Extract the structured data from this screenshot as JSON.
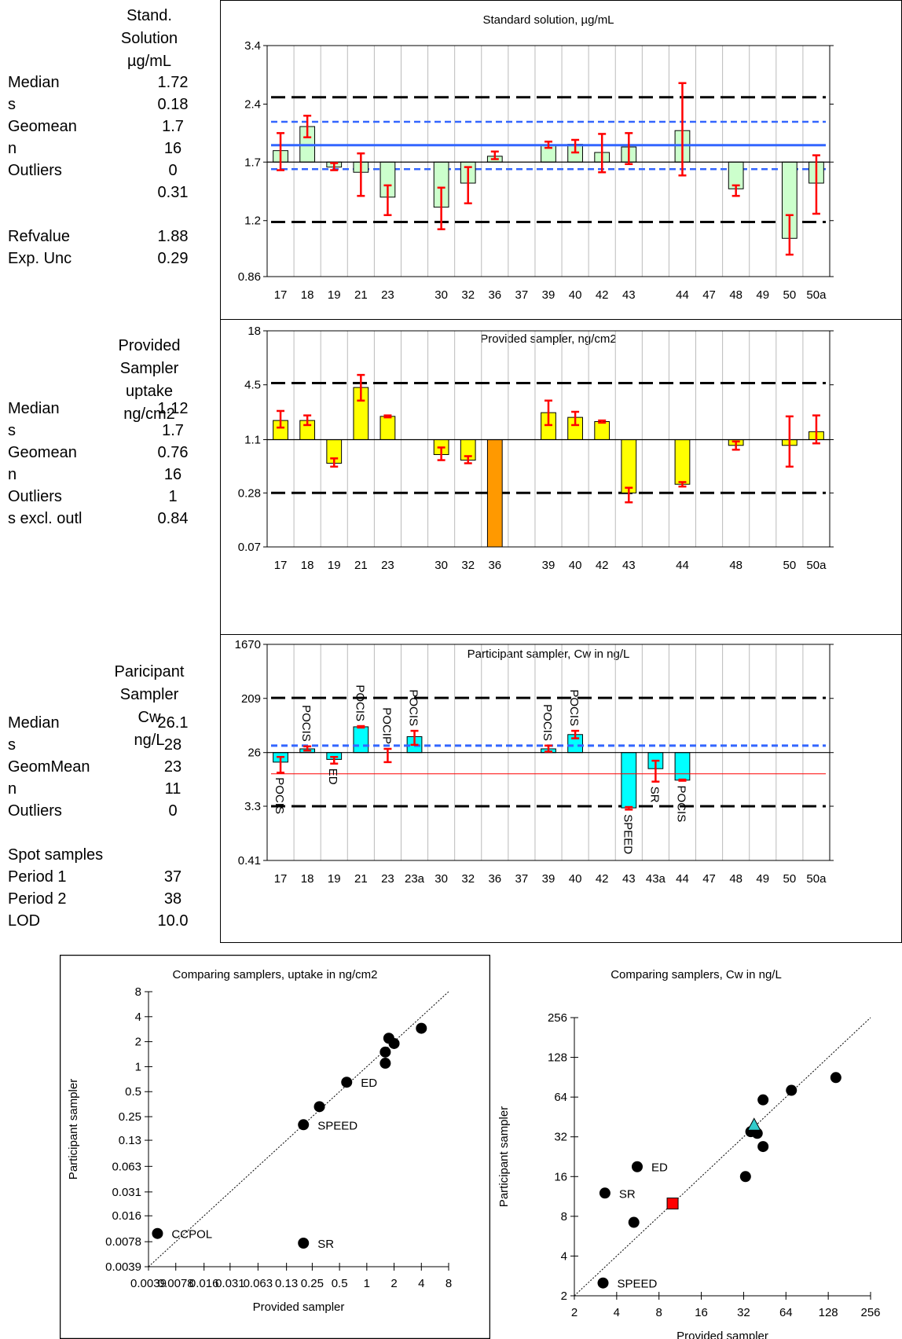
{
  "stats_panels": [
    {
      "header": [
        "Stand.",
        "Solution",
        "µg/mL"
      ],
      "rows": [
        {
          "label": "Median",
          "value": "1.72"
        },
        {
          "label": "s",
          "value": "0.18"
        },
        {
          "label": "Geomean",
          "value": "1.7"
        },
        {
          "label": "n",
          "value": "16"
        },
        {
          "label": "Outliers",
          "value": "0"
        },
        {
          "label": "",
          "value": "0.31"
        },
        {
          "label": "",
          "value": ""
        },
        {
          "label": "Refvalue",
          "value": "1.88"
        },
        {
          "label": "Exp. Unc",
          "value": "0.29"
        }
      ]
    },
    {
      "header": [
        "Provided",
        "Sampler",
        "uptake",
        "ng/cm2"
      ],
      "rows": [
        {
          "label": "Median",
          "value": "1.12"
        },
        {
          "label": "s",
          "value": "1.7"
        },
        {
          "label": "Geomean",
          "value": "0.76"
        },
        {
          "label": "n",
          "value": "16"
        },
        {
          "label": "Outliers",
          "value": "1"
        },
        {
          "label": "s excl. outl",
          "value": "0.84"
        }
      ]
    },
    {
      "header": [
        "Paricipant",
        "Sampler",
        "Cw",
        "ng/L"
      ],
      "rows": [
        {
          "label": "Median",
          "value": "26.1"
        },
        {
          "label": "s",
          "value": "28"
        },
        {
          "label": "GeomMean",
          "value": "23"
        },
        {
          "label": "n",
          "value": "11"
        },
        {
          "label": "Outliers",
          "value": "0"
        },
        {
          "label": "",
          "value": ""
        },
        {
          "label": "Spot samples",
          "value": ""
        },
        {
          "label": "Period 1",
          "value": "37"
        },
        {
          "label": "Period 2",
          "value": "38"
        },
        {
          "label": "LOD",
          "value": "10.0"
        }
      ]
    }
  ],
  "colors": {
    "standard_bar": "#ccffcc",
    "provided_bar": "#ffff00",
    "provided_outlier": "#ff9900",
    "participant_bar": "#00ffff",
    "error_bar": "#ff0000",
    "ref_line": "#3366ff",
    "limit_line": "#000000",
    "red_line": "#ff0000"
  },
  "chart_data": [
    {
      "type": "bar",
      "title": "Standard solution, µg/mL",
      "scale": "log",
      "baseline": 1.7,
      "ylim": [
        0.86,
        3.4
      ],
      "yticks": [
        "3.4",
        "2.4",
        "1.7",
        "1.2",
        "0.86"
      ],
      "categories": [
        "17",
        "18",
        "19",
        "21",
        "23",
        "",
        "30",
        "32",
        "36",
        "37",
        "39",
        "40",
        "42",
        "43",
        "",
        "44",
        "47",
        "48",
        "49",
        "50",
        "50a"
      ],
      "values": [
        1.82,
        2.1,
        1.65,
        1.6,
        1.38,
        null,
        1.3,
        1.5,
        1.76,
        null,
        1.88,
        1.89,
        1.8,
        1.86,
        null,
        2.05,
        null,
        1.45,
        null,
        1.08,
        1.5
      ],
      "err_low": [
        1.62,
        1.97,
        1.62,
        1.39,
        1.24,
        null,
        1.14,
        1.33,
        1.73,
        null,
        1.85,
        1.8,
        1.6,
        1.68,
        null,
        1.57,
        null,
        1.39,
        null,
        0.98,
        1.25
      ],
      "err_high": [
        2.02,
        2.24,
        1.69,
        1.79,
        1.48,
        null,
        1.46,
        1.65,
        1.81,
        null,
        1.92,
        1.94,
        2.01,
        2.02,
        null,
        2.72,
        null,
        1.48,
        null,
        1.24,
        1.77
      ],
      "ref_value": 1.88,
      "ref_band": [
        1.63,
        2.16
      ],
      "limits": [
        1.19,
        2.5
      ],
      "grid": true
    },
    {
      "type": "bar",
      "title": "Provided sampler, ng/cm2",
      "scale": "log",
      "baseline": 1.1,
      "ylim": [
        0.07,
        18
      ],
      "yticks": [
        "18",
        "4.5",
        "1.1",
        "0.28",
        "0.07"
      ],
      "categories": [
        "17",
        "18",
        "19",
        "21",
        "23",
        "",
        "30",
        "32",
        "36",
        "",
        "39",
        "40",
        "42",
        "43",
        "",
        "44",
        "",
        "48",
        "",
        "50",
        "50a"
      ],
      "values": [
        1.8,
        1.8,
        0.6,
        4.2,
        2.0,
        null,
        0.75,
        0.65,
        0.07,
        null,
        2.2,
        1.95,
        1.75,
        0.28,
        null,
        0.35,
        null,
        0.95,
        null,
        0.95,
        1.35
      ],
      "err_low": [
        1.5,
        1.6,
        0.55,
        3.0,
        1.95,
        null,
        0.65,
        0.6,
        null,
        null,
        1.6,
        1.6,
        1.7,
        0.22,
        null,
        0.33,
        null,
        0.85,
        null,
        0.55,
        1.0
      ],
      "err_high": [
        2.3,
        2.05,
        0.68,
        5.8,
        2.05,
        null,
        0.9,
        0.72,
        null,
        null,
        3.0,
        2.25,
        1.8,
        0.32,
        null,
        0.37,
        null,
        1.05,
        null,
        2.0,
        2.05
      ],
      "outlier_index": 8,
      "limits": [
        0.28,
        4.7
      ],
      "grid": true
    },
    {
      "type": "bar",
      "title": "Participant sampler, Cw in ng/L",
      "scale": "log",
      "baseline": 26,
      "ylim": [
        0.41,
        1670
      ],
      "yticks": [
        "1670",
        "209",
        "26",
        "3.3",
        "0.41"
      ],
      "categories": [
        "17",
        "18",
        "19",
        "21",
        "23",
        "23a",
        "30",
        "32",
        "36",
        "37",
        "39",
        "40",
        "42",
        "43",
        "43a",
        "44",
        "47",
        "48",
        "49",
        "50",
        "50a"
      ],
      "values": [
        18,
        30,
        20,
        70,
        null,
        48,
        null,
        null,
        null,
        null,
        30,
        52,
        null,
        3.1,
        14,
        9,
        null,
        null,
        null,
        null,
        null
      ],
      "err_low": [
        12,
        28,
        17,
        68,
        18,
        35,
        null,
        null,
        null,
        null,
        27,
        45,
        null,
        2.9,
        8.5,
        8.8,
        null,
        null,
        null,
        null,
        null
      ],
      "err_high": [
        22,
        33,
        22,
        72,
        30,
        60,
        null,
        null,
        null,
        null,
        34,
        60,
        null,
        3.2,
        19,
        9.2,
        null,
        null,
        null,
        null,
        null
      ],
      "bar_labels": [
        "POCIS",
        "POCIS",
        "ED",
        "POCIS",
        "POCIP",
        "POCIS",
        "",
        "",
        "",
        "",
        "POCIS",
        "POCIS",
        "",
        "SPEED",
        "SR",
        "POCIS",
        "",
        "",
        "",
        "",
        ""
      ],
      "ref_value": 34,
      "red_line": 11.5,
      "limits": [
        3.3,
        213
      ],
      "grid": true
    },
    {
      "type": "scatter",
      "title": "Comparing samplers, uptake in ng/cm2",
      "xlabel": "Provided sampler",
      "ylabel": "Participant sampler",
      "scale": "log2",
      "xlim": [
        0.0039,
        8
      ],
      "ylim": [
        0.0039,
        8
      ],
      "xticks": [
        "0.0039",
        "0.0078",
        "0.016",
        "0.031",
        "0.063",
        "0.13",
        "0.25",
        "0.5",
        "1",
        "2",
        "4",
        "8"
      ],
      "yticks": [
        "8",
        "4",
        "2",
        "1",
        "0.5",
        "0.25",
        "0.13",
        "0.063",
        "0.031",
        "0.016",
        "0.0078",
        "0.0039"
      ],
      "points": [
        {
          "x": 0.0049,
          "y": 0.0098,
          "label": "CCPOL"
        },
        {
          "x": 0.2,
          "y": 0.0075,
          "label": "SR"
        },
        {
          "x": 0.2,
          "y": 0.2,
          "label": "SPEED"
        },
        {
          "x": 0.6,
          "y": 0.65,
          "label": "ED"
        },
        {
          "x": 0.3,
          "y": 0.33,
          "label": ""
        },
        {
          "x": 1.6,
          "y": 1.1,
          "label": ""
        },
        {
          "x": 1.6,
          "y": 1.5,
          "label": ""
        },
        {
          "x": 1.75,
          "y": 2.2,
          "label": ""
        },
        {
          "x": 2.0,
          "y": 1.9,
          "label": ""
        },
        {
          "x": 4.0,
          "y": 2.9,
          "label": ""
        }
      ],
      "diagonal": true
    },
    {
      "type": "scatter",
      "title": "Comparing samplers, Cw in ng/L",
      "xlabel": "Provided sampler",
      "ylabel": "Participant sampler",
      "scale": "log2",
      "xlim": [
        2,
        256
      ],
      "ylim": [
        2,
        256
      ],
      "xticks": [
        "2",
        "4",
        "8",
        "16",
        "32",
        "64",
        "128",
        "256"
      ],
      "yticks": [
        "256",
        "128",
        "64",
        "32",
        "16",
        "8",
        "4",
        "2"
      ],
      "points": [
        {
          "x": 3.3,
          "y": 12,
          "label": "SR"
        },
        {
          "x": 3.2,
          "y": 2.5,
          "label": "SPEED"
        },
        {
          "x": 5.6,
          "y": 19,
          "label": "ED"
        },
        {
          "x": 5.3,
          "y": 7.2,
          "label": ""
        },
        {
          "x": 33,
          "y": 16,
          "label": ""
        },
        {
          "x": 36,
          "y": 35,
          "label": ""
        },
        {
          "x": 40,
          "y": 34,
          "label": ""
        },
        {
          "x": 44,
          "y": 27,
          "label": ""
        },
        {
          "x": 44,
          "y": 61,
          "label": ""
        },
        {
          "x": 70,
          "y": 72,
          "label": ""
        },
        {
          "x": 145,
          "y": 90,
          "label": ""
        }
      ],
      "special_points": [
        {
          "x": 10,
          "y": 10,
          "shape": "square",
          "color": "#ff0000"
        },
        {
          "x": 38,
          "y": 39,
          "shape": "triangle",
          "color": "#33cccc"
        }
      ],
      "diagonal": true
    }
  ]
}
